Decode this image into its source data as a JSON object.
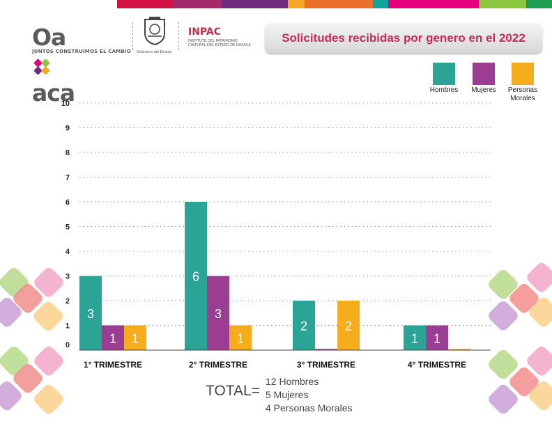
{
  "header": {
    "logo_word_left": "Oa",
    "logo_word_right": "aca",
    "logo_tagline": "JUNTOS CONSTRUIMOS EL CAMBIO",
    "seal_caption": "Gobierno del Estado",
    "inpac_title": "INPAC",
    "inpac_subtitle": "INSTITUTO DEL PATRIMONIO CULTURAL DEL ESTADO DE OAXACA",
    "stripe_colors": [
      "#ffffff",
      "#d31145",
      "#a52a6b",
      "#6d2c7d",
      "#f5a623",
      "#e8702a",
      "#0fa39a",
      "#e6007e",
      "#8dc63f",
      "#1f9e52"
    ]
  },
  "chart_data": {
    "type": "bar",
    "title": "Solicitudes recibidas por genero en el 2022",
    "categories": [
      "1° TRIMESTRE",
      "2° TRIMESTRE",
      "3° TRIMESTRE",
      "4° TRIMESTRE"
    ],
    "series": [
      {
        "name": "Hombres",
        "color": "#2ba395",
        "values": [
          3,
          6,
          2,
          1
        ],
        "labels": [
          "3",
          "6",
          "2",
          "1"
        ]
      },
      {
        "name": "Mujeres",
        "color": "#9b3d92",
        "values": [
          1,
          3,
          0.05,
          1
        ],
        "labels": [
          "1",
          "3",
          "",
          "1"
        ]
      },
      {
        "name": "Personas Morales",
        "color": "#f6ad1d",
        "values": [
          1,
          1,
          2,
          0.05
        ],
        "labels": [
          "1",
          "1",
          "2",
          ""
        ]
      }
    ],
    "yticks": [
      0,
      1,
      2,
      3,
      4,
      5,
      6,
      7,
      8,
      9,
      10
    ],
    "ylim": [
      0,
      10
    ],
    "grid": true,
    "legend_position": "top-right"
  },
  "legend": {
    "hombres": "Hombres",
    "mujeres": "Mujeres",
    "morales": "Personas Morales"
  },
  "totals": {
    "label": "TOTAL=",
    "lines": [
      "12 Hombres",
      "5 Mujeres",
      "4 Personas Morales"
    ]
  }
}
